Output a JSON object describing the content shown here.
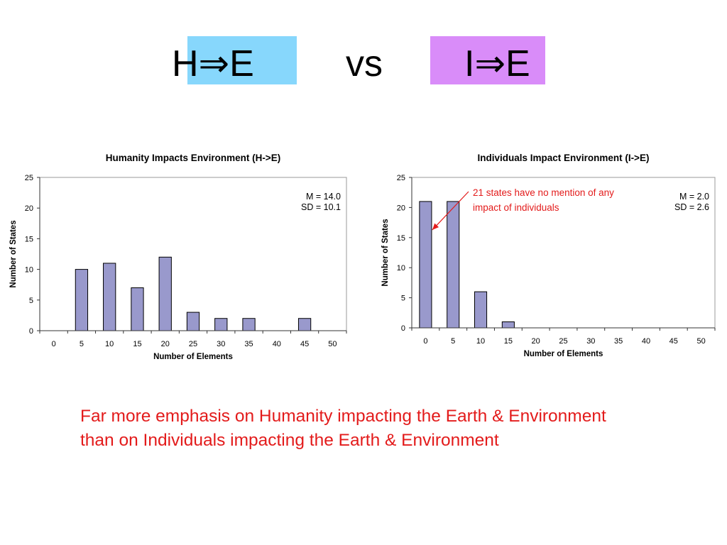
{
  "heading": {
    "left_text": "H⇒E",
    "vs_text": "vs",
    "right_text": "I⇒E",
    "left_highlight": "#87d7fc",
    "right_highlight": "#d98cf9"
  },
  "caption": {
    "line1": "Far more emphasis on Humanity impacting the Earth & Environment",
    "line2": "than on Individuals impacting the  Earth & Environment",
    "color": "#e31b1b"
  },
  "chart_data": [
    {
      "type": "bar",
      "title": "Humanity Impacts Environment (H->E)",
      "xlabel": "Number of Elements",
      "ylabel": "Number of States",
      "categories": [
        "0",
        "5",
        "10",
        "15",
        "20",
        "25",
        "30",
        "35",
        "40",
        "45",
        "50"
      ],
      "values": [
        0,
        10,
        11,
        7,
        12,
        3,
        2,
        2,
        0,
        2,
        0
      ],
      "ylim": [
        0,
        25
      ],
      "yticks": [
        0,
        5,
        10,
        15,
        20,
        25
      ],
      "stats": [
        "M = 14.0",
        "SD = 10.1"
      ],
      "bar_color": "#9999cc",
      "grid": false
    },
    {
      "type": "bar",
      "title": "Individuals Impact Environment (I->E)",
      "xlabel": "Number of Elements",
      "ylabel": "Number of States",
      "categories": [
        "0",
        "5",
        "10",
        "15",
        "20",
        "25",
        "30",
        "35",
        "40",
        "45",
        "50"
      ],
      "values": [
        21,
        21,
        6,
        1,
        0,
        0,
        0,
        0,
        0,
        0,
        0
      ],
      "ylim": [
        0,
        25
      ],
      "yticks": [
        0,
        5,
        10,
        15,
        20,
        25
      ],
      "stats": [
        "M = 2.0",
        "SD = 2.6"
      ],
      "annotation": {
        "lines": [
          "21 states have no mention of any",
          "impact of individuals"
        ],
        "color": "#e31b1b",
        "points_to_category": "0"
      },
      "bar_color": "#9999cc",
      "grid": false
    }
  ]
}
